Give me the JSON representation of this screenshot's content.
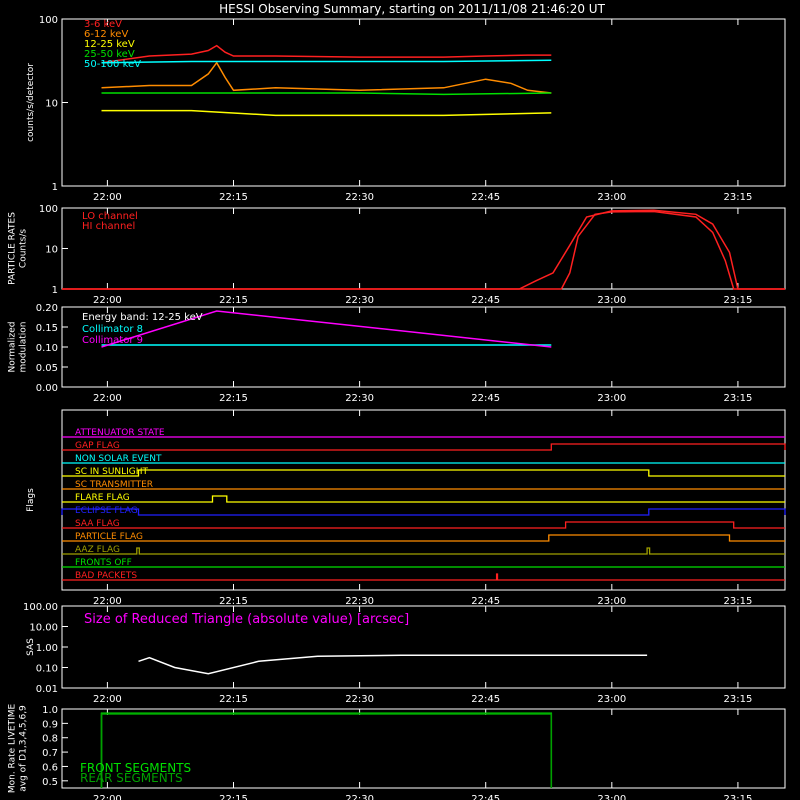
{
  "title": "HESSI Observing Summary, starting on 2011/11/08 21:46:20 UT",
  "time_ticks": [
    "22:00",
    "22:15",
    "22:30",
    "22:45",
    "23:00",
    "23:15"
  ],
  "time_tick_minutes": [
    0,
    15,
    30,
    45,
    60,
    75
  ],
  "time_range_minutes": [
    -5.4,
    80.6
  ],
  "colors": {
    "background": "#000000",
    "axes": "#ffffff",
    "red": "#ff2020",
    "orange": "#ff8c00",
    "yellow": "#ffff00",
    "green": "#00e000",
    "cyan": "#00ffff",
    "magenta": "#ff00ff",
    "blue": "#2020ff",
    "white": "#ffffff",
    "olive": "#a0a000",
    "darkgreen": "#00a000"
  },
  "chart_data": [
    {
      "id": "counts",
      "type": "line",
      "ylabel": "counts/s/detector",
      "yscale": "log",
      "ylim": [
        1,
        100
      ],
      "yticks": [
        1,
        10,
        100
      ],
      "ytick_labels": [
        "1",
        "10",
        "100"
      ],
      "legend_placement": "top-left",
      "series": [
        {
          "name": "3-6 keV",
          "color": "red",
          "x": [
            -0.7,
            5,
            10,
            12,
            13,
            14,
            15,
            20,
            30,
            40,
            45,
            50,
            52.8
          ],
          "y": [
            30,
            36,
            38,
            42,
            48,
            40,
            36,
            36,
            35,
            35,
            36,
            37,
            37
          ]
        },
        {
          "name": "6-12 keV",
          "color": "orange",
          "x": [
            -0.7,
            5,
            10,
            12,
            13,
            14,
            15,
            20,
            30,
            40,
            45,
            48,
            50,
            52.8
          ],
          "y": [
            15,
            16,
            16,
            22,
            30,
            20,
            14,
            15,
            14,
            15,
            19,
            17,
            14,
            13
          ]
        },
        {
          "name": "12-25 keV",
          "color": "yellow",
          "x": [
            -0.7,
            10,
            20,
            30,
            40,
            52.8
          ],
          "y": [
            8,
            8,
            7,
            7,
            7,
            7.5
          ]
        },
        {
          "name": "25-50 keV",
          "color": "green",
          "x": [
            -0.7,
            10,
            20,
            30,
            40,
            52.8
          ],
          "y": [
            13,
            13,
            13,
            13,
            12.5,
            13
          ]
        },
        {
          "name": "50-100 keV",
          "color": "cyan",
          "x": [
            -0.7,
            10,
            20,
            30,
            40,
            52.8
          ],
          "y": [
            30,
            31,
            31,
            31,
            31,
            32
          ]
        }
      ]
    },
    {
      "id": "particle",
      "type": "line",
      "ylabel": [
        "PARTICLE RATES",
        "Counts/s"
      ],
      "yscale": "log",
      "ylim": [
        1,
        100
      ],
      "yticks": [
        1,
        10,
        100
      ],
      "ytick_labels": [
        "1",
        "10",
        "100"
      ],
      "legend_placement": "top-left",
      "series": [
        {
          "name": "LO channel",
          "color": "red",
          "x": [
            -5.4,
            49,
            51,
            53,
            55,
            57,
            60,
            65,
            70,
            72,
            74,
            75,
            76,
            80.6
          ],
          "y": [
            1,
            1,
            1.6,
            2.5,
            12,
            60,
            85,
            88,
            70,
            40,
            8,
            1,
            1,
            1
          ]
        },
        {
          "name": "HI channel",
          "color": "red",
          "x": [
            -5.4,
            54,
            55,
            56,
            58,
            60,
            65,
            70,
            72,
            73.5,
            74.5,
            80.6
          ],
          "y": [
            1,
            1,
            2.5,
            20,
            70,
            80,
            82,
            60,
            25,
            5,
            1,
            1
          ]
        }
      ]
    },
    {
      "id": "modulation",
      "type": "line",
      "ylabel": [
        "Normalized",
        "modulation"
      ],
      "ylim": [
        0,
        0.2
      ],
      "yticks": [
        0,
        0.05,
        0.1,
        0.15,
        0.2
      ],
      "ytick_labels": [
        "0.00",
        "0.05",
        "0.10",
        "0.15",
        "0.20"
      ],
      "annotation": "Energy band: 12-25 keV",
      "legend_placement": "top-left",
      "series": [
        {
          "name": "Collimator 8",
          "color": "cyan",
          "x": [
            -0.7,
            52.8
          ],
          "y": [
            0.105,
            0.105
          ]
        },
        {
          "name": "Collimator 9",
          "color": "magenta",
          "x": [
            -0.7,
            13,
            52.8
          ],
          "y": [
            0.1,
            0.19,
            0.1
          ]
        }
      ]
    },
    {
      "id": "flags",
      "type": "line",
      "ylabel": "Flags",
      "flags": [
        {
          "name": "ATTENUATOR STATE",
          "color": "magenta",
          "on": []
        },
        {
          "name": "GAP FLAG",
          "color": "red",
          "on": [
            [
              52.8,
              80.6
            ]
          ]
        },
        {
          "name": "NON SOLAR EVENT",
          "color": "cyan",
          "on": []
        },
        {
          "name": "SC IN SUNLIGHT",
          "color": "yellow",
          "on": [
            [
              3.7,
              64.4
            ]
          ]
        },
        {
          "name": "SC TRANSMITTER",
          "color": "orange",
          "on": []
        },
        {
          "name": "FLARE FLAG",
          "color": "yellow",
          "on": [
            [
              12.5,
              14.2
            ]
          ]
        },
        {
          "name": "ECLIPSE FLAG",
          "color": "blue",
          "on": [
            [
              -5.4,
              3.7
            ],
            [
              64.4,
              80.6
            ]
          ]
        },
        {
          "name": "SAA FLAG",
          "color": "red",
          "on": [
            [
              54.5,
              74.5
            ]
          ]
        },
        {
          "name": "PARTICLE FLAG",
          "color": "orange",
          "on": [
            [
              52.5,
              74.0
            ]
          ]
        },
        {
          "name": "AAZ FLAG",
          "color": "olive",
          "on": [
            [
              3.5,
              3.8
            ],
            [
              64.2,
              64.5
            ]
          ]
        },
        {
          "name": "FRONTS OFF",
          "color": "green",
          "on": []
        },
        {
          "name": "BAD PACKETS",
          "color": "red",
          "on": [
            [
              46.3,
              46.4
            ]
          ]
        }
      ]
    },
    {
      "id": "sas",
      "type": "line",
      "ylabel": "SAS",
      "yscale": "log",
      "ylim": [
        0.01,
        100
      ],
      "yticks": [
        0.01,
        0.1,
        1,
        10,
        100
      ],
      "ytick_labels": [
        "0.01",
        "0.10",
        "1.00",
        "10.00",
        "100.00"
      ],
      "annotation": "Size of Reduced Triangle (absolute value) [arcsec]",
      "series": [
        {
          "name": "",
          "color": "white",
          "x": [
            3.7,
            5,
            8,
            12,
            18,
            25,
            35,
            45,
            55,
            64.2
          ],
          "y": [
            0.2,
            0.3,
            0.1,
            0.05,
            0.2,
            0.35,
            0.4,
            0.4,
            0.4,
            0.4
          ]
        }
      ]
    },
    {
      "id": "livetime",
      "type": "line",
      "ylabel": [
        "Mon. Rate LIVETIME",
        "avg of D1,3,4,5,6,9"
      ],
      "ylim": [
        0.45,
        1.0
      ],
      "yticks": [
        0.5,
        0.6,
        0.7,
        0.8,
        0.9,
        1.0
      ],
      "ytick_labels": [
        "0.5",
        "0.6",
        "0.7",
        "0.8",
        "0.9",
        "1.0"
      ],
      "legend_placement": "bottom-left",
      "series": [
        {
          "name": "FRONT SEGMENTS",
          "color": "green",
          "x": [
            -0.7,
            -0.7,
            52.8,
            52.8
          ],
          "y": [
            0.45,
            0.97,
            0.97,
            0.45
          ]
        },
        {
          "name": "REAR SEGMENTS",
          "color": "darkgreen",
          "x": [
            -0.7,
            -0.7,
            52.8,
            52.8
          ],
          "y": [
            0.45,
            0.965,
            0.965,
            0.45
          ]
        }
      ]
    }
  ]
}
